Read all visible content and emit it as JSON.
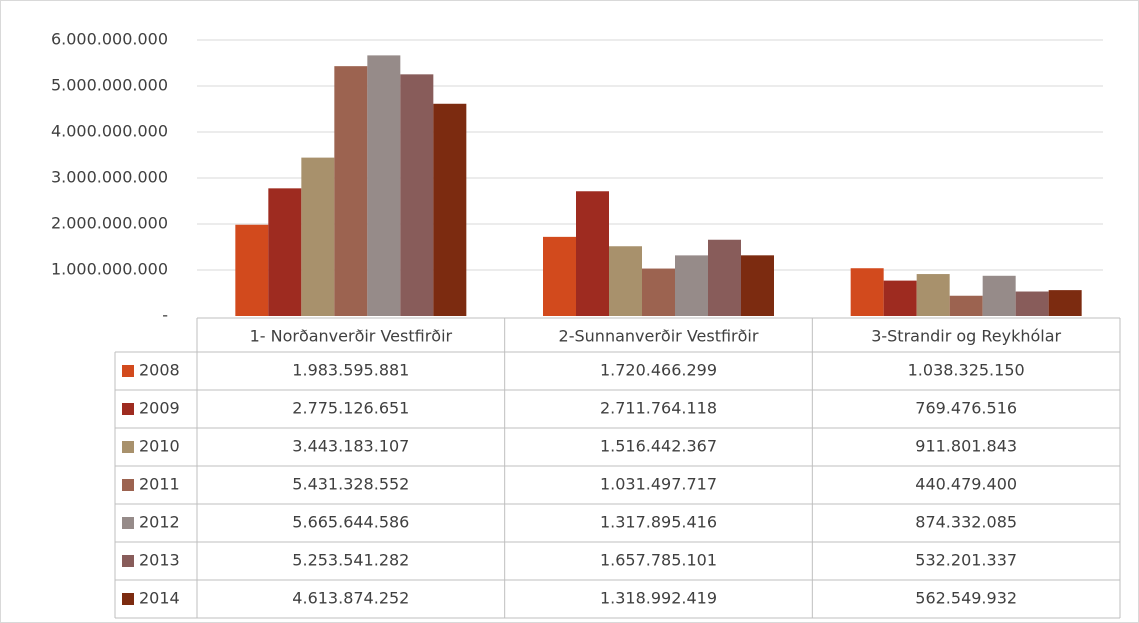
{
  "chart_data": {
    "type": "bar",
    "categories": [
      "1- Norðanverðir Vestfirðir",
      "2-Sunnanverðir Vestfirðir",
      "3-Strandir og Reykhólar"
    ],
    "series": [
      {
        "name": "2008",
        "color": "#d24a1d",
        "values": [
          1983595881,
          1720466299,
          1038325150
        ],
        "value_labels": [
          "1.983.595.881",
          "1.720.466.299",
          "1.038.325.150"
        ]
      },
      {
        "name": "2009",
        "color": "#9e2b20",
        "values": [
          2775126651,
          2711764118,
          769476516
        ],
        "value_labels": [
          "2.775.126.651",
          "2.711.764.118",
          "769.476.516"
        ]
      },
      {
        "name": "2010",
        "color": "#a8916c",
        "values": [
          3443183107,
          1516442367,
          911801843
        ],
        "value_labels": [
          "3.443.183.107",
          "1.516.442.367",
          "911.801.843"
        ]
      },
      {
        "name": "2011",
        "color": "#9c6350",
        "values": [
          5431328552,
          1031497717,
          440479400
        ],
        "value_labels": [
          "5.431.328.552",
          "1.031.497.717",
          "440.479.400"
        ]
      },
      {
        "name": "2012",
        "color": "#968b89",
        "values": [
          5665644586,
          1317895416,
          874332085
        ],
        "value_labels": [
          "5.665.644.586",
          "1.317.895.416",
          "874.332.085"
        ]
      },
      {
        "name": "2013",
        "color": "#885c5a",
        "values": [
          5253541282,
          1657785101,
          532201337
        ],
        "value_labels": [
          "5.253.541.282",
          "1.657.785.101",
          "532.201.337"
        ]
      },
      {
        "name": "2014",
        "color": "#7c2b10",
        "values": [
          4613874252,
          1318992419,
          562549932
        ],
        "value_labels": [
          "4.613.874.252",
          "1.318.992.419",
          "562.549.932"
        ]
      }
    ],
    "ylim": [
      0,
      6000000000
    ],
    "yticks": [
      {
        "value": 0,
        "label": "-"
      },
      {
        "value": 1000000000,
        "label": "1.000.000.000"
      },
      {
        "value": 2000000000,
        "label": "2.000.000.000"
      },
      {
        "value": 3000000000,
        "label": "3.000.000.000"
      },
      {
        "value": 4000000000,
        "label": "4.000.000.000"
      },
      {
        "value": 5000000000,
        "label": "5.000.000.000"
      },
      {
        "value": 6000000000,
        "label": "6.000.000.000"
      }
    ],
    "grid": true
  }
}
